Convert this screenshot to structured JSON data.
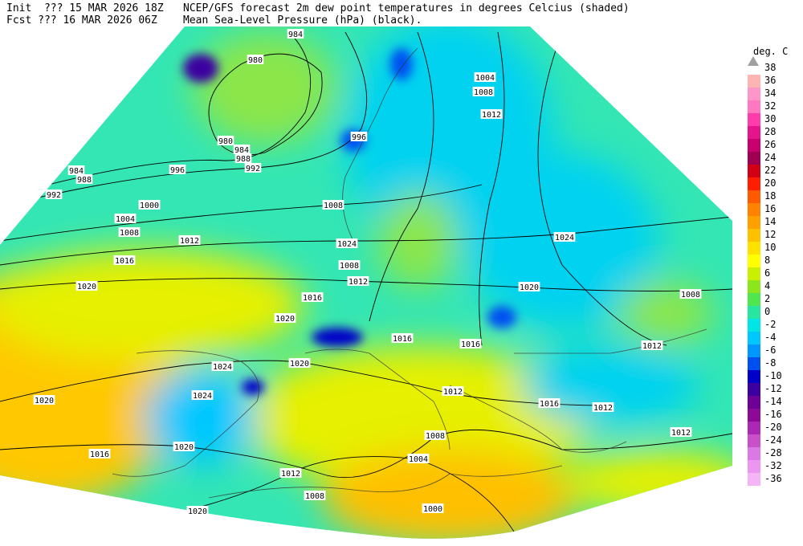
{
  "header": {
    "init": "Init  ??? 15 MAR 2026 18Z",
    "fcst": "Fcst ??? 16 MAR 2026 06Z",
    "title": "NCEP/GFS forecast 2m dew point temperatures in degrees Celcius (shaded)",
    "subtitle": "Mean Sea-Level Pressure (hPa) (black)."
  },
  "colorbar": {
    "title": "deg. C",
    "levels": [
      38,
      36,
      34,
      32,
      30,
      28,
      26,
      24,
      22,
      20,
      18,
      16,
      14,
      12,
      10,
      8,
      6,
      4,
      2,
      0,
      -2,
      -4,
      -6,
      -8,
      -10,
      -12,
      -14,
      -16,
      -20,
      -24,
      -28,
      -32,
      -36
    ],
    "colors": [
      "#ffb4b4",
      "#ff96c8",
      "#ff78c0",
      "#ff3caa",
      "#e6148c",
      "#c8006e",
      "#a00050",
      "#d20014",
      "#ff1e00",
      "#ff5a00",
      "#ff8200",
      "#ffa000",
      "#ffc000",
      "#ffe100",
      "#ffff00",
      "#c8f000",
      "#8ce61e",
      "#50e650",
      "#28e6a0",
      "#00e6e6",
      "#00c8ff",
      "#0096ff",
      "#0050f0",
      "#0000c8",
      "#3c00a0",
      "#6e0096",
      "#8c0a96",
      "#aa28b4",
      "#c850c8",
      "#dc78e6",
      "#eb96f0",
      "#f5b4f5"
    ],
    "overflow_color": "#a0a0a0"
  },
  "isobar_labels": [
    984,
    980,
    1004,
    1008,
    1012,
    996,
    980,
    984,
    988,
    992,
    996,
    984,
    988,
    992,
    1000,
    1008,
    1004,
    1008,
    1012,
    1024,
    1024,
    1016,
    1008,
    1012,
    1020,
    1020,
    1008,
    1016,
    1020,
    1016,
    1016,
    1012,
    1020,
    1024,
    1012,
    1024,
    1020,
    1016,
    1012,
    1008,
    1012,
    1020,
    1016,
    1004,
    1012,
    1008,
    1020,
    1000
  ]
}
